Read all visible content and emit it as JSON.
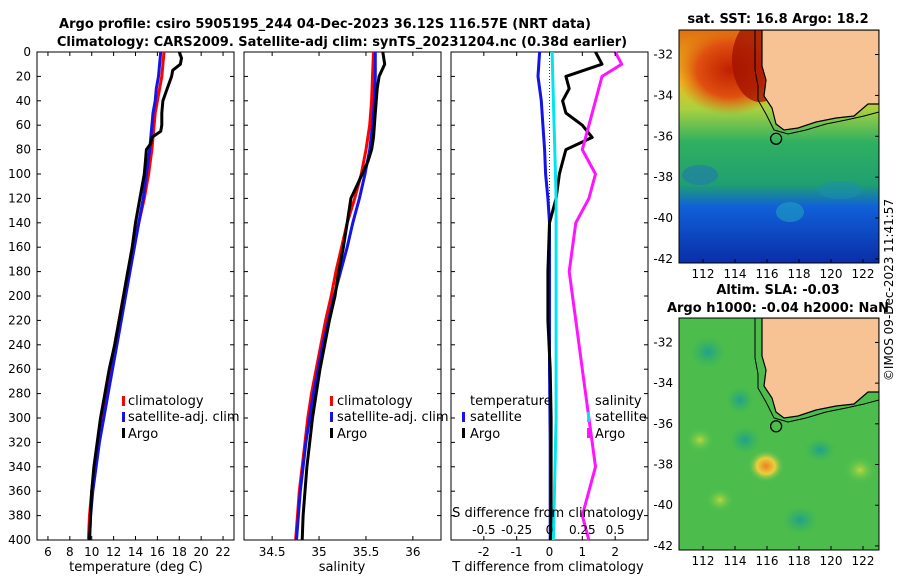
{
  "header": {
    "title_line1": "Argo profile: csiro 5905195_244 04-Dec-2023 36.12S 116.57E (NRT data)",
    "title_line2": "Climatology: CARS2009. Satellite-adj clim: synTS_20231204.nc (0.38d earlier)"
  },
  "watermark": "©IMOS 09-Dec-2023 11:41:57",
  "colors": {
    "climatology": "#ff0000",
    "satellite": "#1414e6",
    "argo": "#000000",
    "sal_satellite": "#00e5f0",
    "sal_argo": "#ff14ff",
    "land": "#f7c394"
  },
  "depth_axis": {
    "range": [
      0,
      400
    ],
    "ticks": [
      "0",
      "20",
      "40",
      "60",
      "80",
      "100",
      "120",
      "140",
      "160",
      "180",
      "200",
      "220",
      "240",
      "260",
      "280",
      "300",
      "320",
      "340",
      "360",
      "380",
      "400"
    ]
  },
  "chart_data": [
    {
      "type": "line",
      "name": "temperature-profile",
      "xlabel": "temperature (deg C)",
      "ylabel": "depth",
      "xlim": [
        5,
        23
      ],
      "ylim": [
        0,
        400
      ],
      "xticks": [
        "6",
        "8",
        "10",
        "12",
        "14",
        "16",
        "18",
        "20",
        "22"
      ],
      "legend": [
        "climatology",
        "satellite-adj. clim",
        "Argo"
      ],
      "series": [
        {
          "name": "climatology",
          "color": "#ff0000",
          "points": [
            [
              16.6,
              0
            ],
            [
              16.5,
              10
            ],
            [
              16.4,
              20
            ],
            [
              16.2,
              30
            ],
            [
              16.0,
              40
            ],
            [
              15.8,
              50
            ],
            [
              15.7,
              60
            ],
            [
              15.5,
              80
            ],
            [
              15.2,
              100
            ],
            [
              14.8,
              120
            ],
            [
              14.3,
              140
            ],
            [
              13.8,
              160
            ],
            [
              13.3,
              180
            ],
            [
              12.9,
              200
            ],
            [
              12.5,
              220
            ],
            [
              12.1,
              240
            ],
            [
              11.7,
              260
            ],
            [
              11.3,
              280
            ],
            [
              10.9,
              300
            ],
            [
              10.6,
              320
            ],
            [
              10.3,
              340
            ],
            [
              10.0,
              360
            ],
            [
              9.8,
              380
            ],
            [
              9.7,
              400
            ]
          ]
        },
        {
          "name": "satellite-adj. clim",
          "color": "#1414e6",
          "points": [
            [
              16.3,
              0
            ],
            [
              16.2,
              10
            ],
            [
              16.1,
              20
            ],
            [
              15.9,
              30
            ],
            [
              15.8,
              40
            ],
            [
              15.6,
              50
            ],
            [
              15.5,
              60
            ],
            [
              15.3,
              80
            ],
            [
              15.0,
              100
            ],
            [
              14.7,
              120
            ],
            [
              14.3,
              140
            ],
            [
              13.9,
              160
            ],
            [
              13.5,
              180
            ],
            [
              13.1,
              200
            ],
            [
              12.7,
              220
            ],
            [
              12.3,
              240
            ],
            [
              11.9,
              260
            ],
            [
              11.5,
              280
            ],
            [
              11.1,
              300
            ],
            [
              10.7,
              320
            ],
            [
              10.4,
              340
            ],
            [
              10.1,
              360
            ],
            [
              9.9,
              380
            ],
            [
              9.8,
              400
            ]
          ]
        },
        {
          "name": "Argo",
          "color": "#000000",
          "points": [
            [
              18.0,
              0
            ],
            [
              18.2,
              5
            ],
            [
              18.1,
              10
            ],
            [
              17.4,
              15
            ],
            [
              17.3,
              20
            ],
            [
              17.1,
              25
            ],
            [
              16.9,
              30
            ],
            [
              16.5,
              40
            ],
            [
              16.4,
              50
            ],
            [
              16.4,
              60
            ],
            [
              16.3,
              65
            ],
            [
              15.5,
              70
            ],
            [
              15.4,
              75
            ],
            [
              15.0,
              80
            ],
            [
              14.9,
              90
            ],
            [
              14.8,
              100
            ],
            [
              14.6,
              110
            ],
            [
              14.4,
              120
            ],
            [
              14.2,
              130
            ],
            [
              14.0,
              140
            ],
            [
              13.7,
              160
            ],
            [
              13.3,
              180
            ],
            [
              12.9,
              200
            ],
            [
              12.5,
              220
            ],
            [
              12.1,
              240
            ],
            [
              11.6,
              260
            ],
            [
              11.2,
              280
            ],
            [
              10.8,
              300
            ],
            [
              10.5,
              320
            ],
            [
              10.2,
              340
            ],
            [
              10.0,
              360
            ],
            [
              9.9,
              380
            ],
            [
              9.8,
              400
            ]
          ]
        }
      ]
    },
    {
      "type": "line",
      "name": "salinity-profile",
      "xlabel": "salinity",
      "ylabel": "depth",
      "xlim": [
        34.2,
        36.3
      ],
      "ylim": [
        0,
        400
      ],
      "xticks": [
        "34.5",
        "35",
        "35.5",
        "36"
      ],
      "legend": [
        "climatology",
        "satellite-adj. clim",
        "Argo"
      ],
      "series": [
        {
          "name": "climatology",
          "color": "#ff0000",
          "points": [
            [
              35.58,
              0
            ],
            [
              35.57,
              20
            ],
            [
              35.56,
              40
            ],
            [
              35.54,
              60
            ],
            [
              35.5,
              80
            ],
            [
              35.45,
              100
            ],
            [
              35.38,
              120
            ],
            [
              35.3,
              140
            ],
            [
              35.24,
              160
            ],
            [
              35.18,
              180
            ],
            [
              35.13,
              200
            ],
            [
              35.07,
              220
            ],
            [
              35.02,
              240
            ],
            [
              34.97,
              260
            ],
            [
              34.92,
              280
            ],
            [
              34.88,
              300
            ],
            [
              34.85,
              320
            ],
            [
              34.82,
              340
            ],
            [
              34.79,
              360
            ],
            [
              34.77,
              380
            ],
            [
              34.75,
              400
            ]
          ]
        },
        {
          "name": "satellite-adj. clim",
          "color": "#1414e6",
          "points": [
            [
              35.6,
              0
            ],
            [
              35.6,
              20
            ],
            [
              35.59,
              40
            ],
            [
              35.57,
              60
            ],
            [
              35.54,
              80
            ],
            [
              35.49,
              100
            ],
            [
              35.43,
              120
            ],
            [
              35.36,
              140
            ],
            [
              35.3,
              160
            ],
            [
              35.23,
              180
            ],
            [
              35.16,
              200
            ],
            [
              35.1,
              220
            ],
            [
              35.04,
              240
            ],
            [
              34.99,
              260
            ],
            [
              34.94,
              280
            ],
            [
              34.9,
              300
            ],
            [
              34.86,
              320
            ],
            [
              34.83,
              340
            ],
            [
              34.8,
              360
            ],
            [
              34.78,
              380
            ],
            [
              34.76,
              400
            ]
          ]
        },
        {
          "name": "Argo",
          "color": "#000000",
          "points": [
            [
              35.68,
              0
            ],
            [
              35.7,
              10
            ],
            [
              35.64,
              20
            ],
            [
              35.62,
              30
            ],
            [
              35.6,
              50
            ],
            [
              35.58,
              70
            ],
            [
              35.56,
              80
            ],
            [
              35.52,
              90
            ],
            [
              35.46,
              100
            ],
            [
              35.4,
              110
            ],
            [
              35.34,
              120
            ],
            [
              35.3,
              140
            ],
            [
              35.26,
              160
            ],
            [
              35.21,
              180
            ],
            [
              35.17,
              200
            ],
            [
              35.11,
              220
            ],
            [
              35.06,
              240
            ],
            [
              35.01,
              260
            ],
            [
              34.97,
              280
            ],
            [
              34.93,
              300
            ],
            [
              34.9,
              320
            ],
            [
              34.87,
              340
            ],
            [
              34.85,
              360
            ],
            [
              34.83,
              380
            ],
            [
              34.82,
              400
            ]
          ]
        }
      ]
    },
    {
      "type": "line",
      "name": "difference-profile",
      "xlabel": "T difference from climatology",
      "top_label": "S difference from climatology",
      "ylabel": "depth",
      "xlim": [
        -3,
        3
      ],
      "ylim": [
        0,
        400
      ],
      "xticks": [
        "-2",
        "-1",
        "0",
        "1",
        "2"
      ],
      "s_ticks": [
        "-0.5",
        "-0.25",
        "0",
        "0.25",
        "0.5"
      ],
      "legend_temperature_title": "temperature",
      "legend_salinity_title": "salinity",
      "legend_items": [
        "satellite",
        "Argo",
        "satellite",
        "Argo"
      ],
      "series": [
        {
          "name": "temperature satellite",
          "color": "#1414e6",
          "points": [
            [
              -0.3,
              0
            ],
            [
              -0.35,
              20
            ],
            [
              -0.25,
              40
            ],
            [
              -0.2,
              60
            ],
            [
              -0.15,
              80
            ],
            [
              -0.12,
              100
            ],
            [
              -0.05,
              120
            ],
            [
              0,
              140
            ],
            [
              0,
              200
            ],
            [
              0,
              260
            ],
            [
              0.02,
              320
            ],
            [
              0.02,
              400
            ]
          ]
        },
        {
          "name": "temperature Argo",
          "color": "#000000",
          "points": [
            [
              1.4,
              0
            ],
            [
              1.6,
              10
            ],
            [
              0.5,
              20
            ],
            [
              0.6,
              30
            ],
            [
              0.4,
              40
            ],
            [
              0.5,
              50
            ],
            [
              1.0,
              60
            ],
            [
              1.3,
              70
            ],
            [
              0.5,
              80
            ],
            [
              0.4,
              90
            ],
            [
              0.3,
              100
            ],
            [
              0.2,
              120
            ],
            [
              0,
              140
            ],
            [
              -0.05,
              180
            ],
            [
              -0.05,
              220
            ],
            [
              0.02,
              260
            ],
            [
              0.05,
              300
            ],
            [
              0.05,
              340
            ],
            [
              0.05,
              400
            ]
          ]
        },
        {
          "name": "salinity satellite",
          "color": "#00e5f0",
          "points": [
            [
              0.02,
              0
            ],
            [
              0.03,
              40
            ],
            [
              0.04,
              80
            ],
            [
              0.05,
              120
            ],
            [
              0.05,
              200
            ],
            [
              0.05,
              300
            ],
            [
              0.03,
              400
            ]
          ]
        },
        {
          "name": "salinity Argo",
          "color": "#ff14ff",
          "points": [
            [
              0.5,
              0
            ],
            [
              0.55,
              10
            ],
            [
              0.4,
              20
            ],
            [
              0.35,
              40
            ],
            [
              0.3,
              60
            ],
            [
              0.25,
              80
            ],
            [
              0.35,
              100
            ],
            [
              0.3,
              120
            ],
            [
              0.2,
              140
            ],
            [
              0.15,
              180
            ],
            [
              0.2,
              220
            ],
            [
              0.25,
              260
            ],
            [
              0.3,
              300
            ],
            [
              0.35,
              340
            ],
            [
              0.25,
              380
            ],
            [
              0.3,
              400
            ]
          ]
        }
      ]
    },
    {
      "type": "heatmap",
      "name": "sst-map",
      "title": "sat. SST: 16.8 Argo: 18.2",
      "xlim": [
        110.5,
        123
      ],
      "ylim": [
        -42.2,
        -30.8
      ],
      "xticks": [
        "112",
        "114",
        "116",
        "118",
        "120",
        "122"
      ],
      "yticks": [
        "-32",
        "-34",
        "-36",
        "-38",
        "-40",
        "-42"
      ],
      "marker": [
        116.57,
        -36.12
      ]
    },
    {
      "type": "heatmap",
      "name": "sla-map",
      "title_line1": "Altim. SLA: -0.03",
      "title_line2": "Argo h1000: -0.04 h2000: NaN",
      "xlim": [
        110.5,
        123
      ],
      "ylim": [
        -42.2,
        -30.8
      ],
      "xticks": [
        "112",
        "114",
        "116",
        "118",
        "120",
        "122"
      ],
      "yticks": [
        "-32",
        "-34",
        "-36",
        "-38",
        "-40",
        "-42"
      ],
      "marker": [
        116.57,
        -36.12
      ]
    }
  ]
}
